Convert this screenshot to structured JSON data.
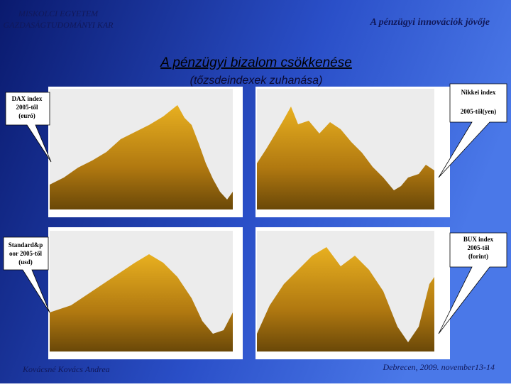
{
  "header": {
    "left": [
      "MISKOLCI EGYETEM",
      "GAZDASÁGTUDOMÁNYI KAR"
    ],
    "right": "A pénzügyi innovációk jövője"
  },
  "title": "A pénzügyi bizalom csökkenése",
  "subtitle": "(tőzsdeindexek zuhanása)",
  "callouts": [
    {
      "lines": [
        "DAX index",
        "2005-től",
        "(euró)"
      ]
    },
    {
      "lines": [
        "Nikkei index",
        "2005-től(yen)"
      ]
    },
    {
      "lines": [
        "Standard&p",
        "oor 2005-től",
        "(usd)"
      ]
    },
    {
      "lines": [
        "BUX index",
        "2005-től",
        "(forint)"
      ]
    }
  ],
  "footer": {
    "left": "Kovácsné Kovács Andrea",
    "right": "Debrecen, 2009. november13-14"
  }
}
